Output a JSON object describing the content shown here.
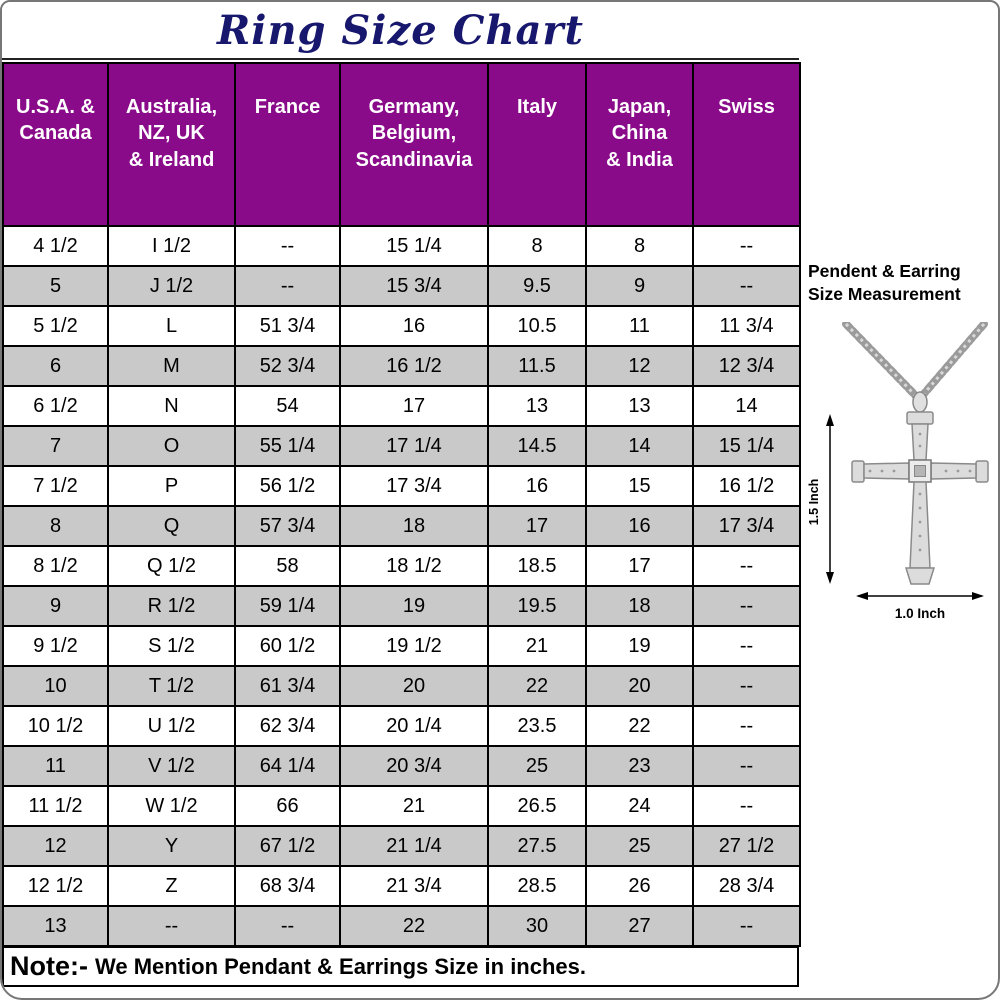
{
  "title": "Ring Size Chart",
  "table": {
    "headers": [
      "U.S.A. &\nCanada",
      "Australia,\nNZ, UK\n& Ireland",
      "France",
      "Germany,\nBelgium,\nScandinavia",
      "Italy",
      "Japan,\nChina\n& India",
      "Swiss"
    ],
    "rows": [
      [
        "4 1/2",
        "I 1/2",
        "--",
        "15 1/4",
        "8",
        "8",
        "--"
      ],
      [
        "5",
        "J 1/2",
        "--",
        "15 3/4",
        "9.5",
        "9",
        "--"
      ],
      [
        "5 1/2",
        "L",
        "51 3/4",
        "16",
        "10.5",
        "11",
        "11 3/4"
      ],
      [
        "6",
        "M",
        "52 3/4",
        "16 1/2",
        "11.5",
        "12",
        "12 3/4"
      ],
      [
        "6 1/2",
        "N",
        "54",
        "17",
        "13",
        "13",
        "14"
      ],
      [
        "7",
        "O",
        "55 1/4",
        "17 1/4",
        "14.5",
        "14",
        "15 1/4"
      ],
      [
        "7 1/2",
        "P",
        "56 1/2",
        "17 3/4",
        "16",
        "15",
        "16 1/2"
      ],
      [
        "8",
        "Q",
        "57 3/4",
        "18",
        "17",
        "16",
        "17 3/4"
      ],
      [
        "8 1/2",
        "Q 1/2",
        "58",
        "18 1/2",
        "18.5",
        "17",
        "--"
      ],
      [
        "9",
        "R 1/2",
        "59 1/4",
        "19",
        "19.5",
        "18",
        "--"
      ],
      [
        "9 1/2",
        "S 1/2",
        "60 1/2",
        "19 1/2",
        "21",
        "19",
        "--"
      ],
      [
        "10",
        "T 1/2",
        "61 3/4",
        "20",
        "22",
        "20",
        "--"
      ],
      [
        "10 1/2",
        "U 1/2",
        "62 3/4",
        "20 1/4",
        "23.5",
        "22",
        "--"
      ],
      [
        "11",
        "V 1/2",
        "64 1/4",
        "20 3/4",
        "25",
        "23",
        "--"
      ],
      [
        "11 1/2",
        "W 1/2",
        "66",
        "21",
        "26.5",
        "24",
        "--"
      ],
      [
        "12",
        "Y",
        "67 1/2",
        "21 1/4",
        "27.5",
        "25",
        "27 1/2"
      ],
      [
        "12 1/2",
        "Z",
        "68 3/4",
        "21 3/4",
        "28.5",
        "26",
        "28 3/4"
      ],
      [
        "13",
        "--",
        "--",
        "22",
        "30",
        "27",
        "--"
      ]
    ]
  },
  "note": {
    "prefix": "Note:-",
    "text": "We Mention Pendant & Earrings Size in inches."
  },
  "side_panel": {
    "heading": "Pendent & Earring\nSize Measurement",
    "height_label": "1.5 Inch",
    "width_label": "1.0 Inch"
  },
  "colors": {
    "header_bg": "#8a0b8a",
    "header_text": "#ffffff",
    "row_alt_bg": "#c9c9c9",
    "title_color": "#17176e",
    "border": "#000000"
  }
}
